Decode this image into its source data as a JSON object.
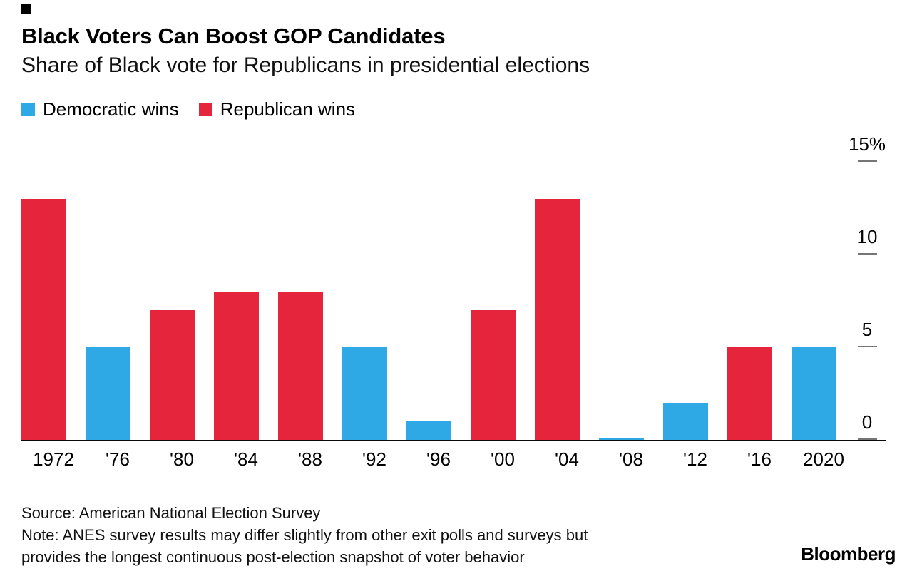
{
  "chart_data": {
    "type": "bar",
    "title": "Black Voters Can Boost GOP Candidates",
    "subtitle": "Share of Black vote for Republicans in presidential elections",
    "categories": [
      "1972",
      "'76",
      "'80",
      "'84",
      "'88",
      "'92",
      "'96",
      "'00",
      "'04",
      "'08",
      "'12",
      "'16",
      "2020"
    ],
    "values": [
      13,
      5,
      7,
      8,
      8,
      5,
      1,
      7,
      13,
      0.1,
      2,
      5,
      5
    ],
    "winner_party": [
      "R",
      "D",
      "R",
      "R",
      "R",
      "D",
      "D",
      "R",
      "R",
      "D",
      "D",
      "R",
      "D"
    ],
    "legend": [
      {
        "label": "Democratic wins",
        "party": "D",
        "color": "#2fa9e6"
      },
      {
        "label": "Republican wins",
        "party": "R",
        "color": "#e4253c"
      }
    ],
    "legend_position": "top-left",
    "unit": "%",
    "ylim": [
      0,
      15
    ],
    "yticks": [
      {
        "value": 0,
        "label": "0"
      },
      {
        "value": 5,
        "label": "5"
      },
      {
        "value": 10,
        "label": "10"
      },
      {
        "value": 15,
        "label": "15%"
      }
    ],
    "grid": false
  },
  "footer": {
    "source": "Source: American National Election Survey",
    "note_lines": [
      "Note: ANES survey results may differ slightly from other exit polls and surveys but",
      "provides the longest continuous post-election snapshot of voter behavior"
    ],
    "logo": "Bloomberg"
  }
}
